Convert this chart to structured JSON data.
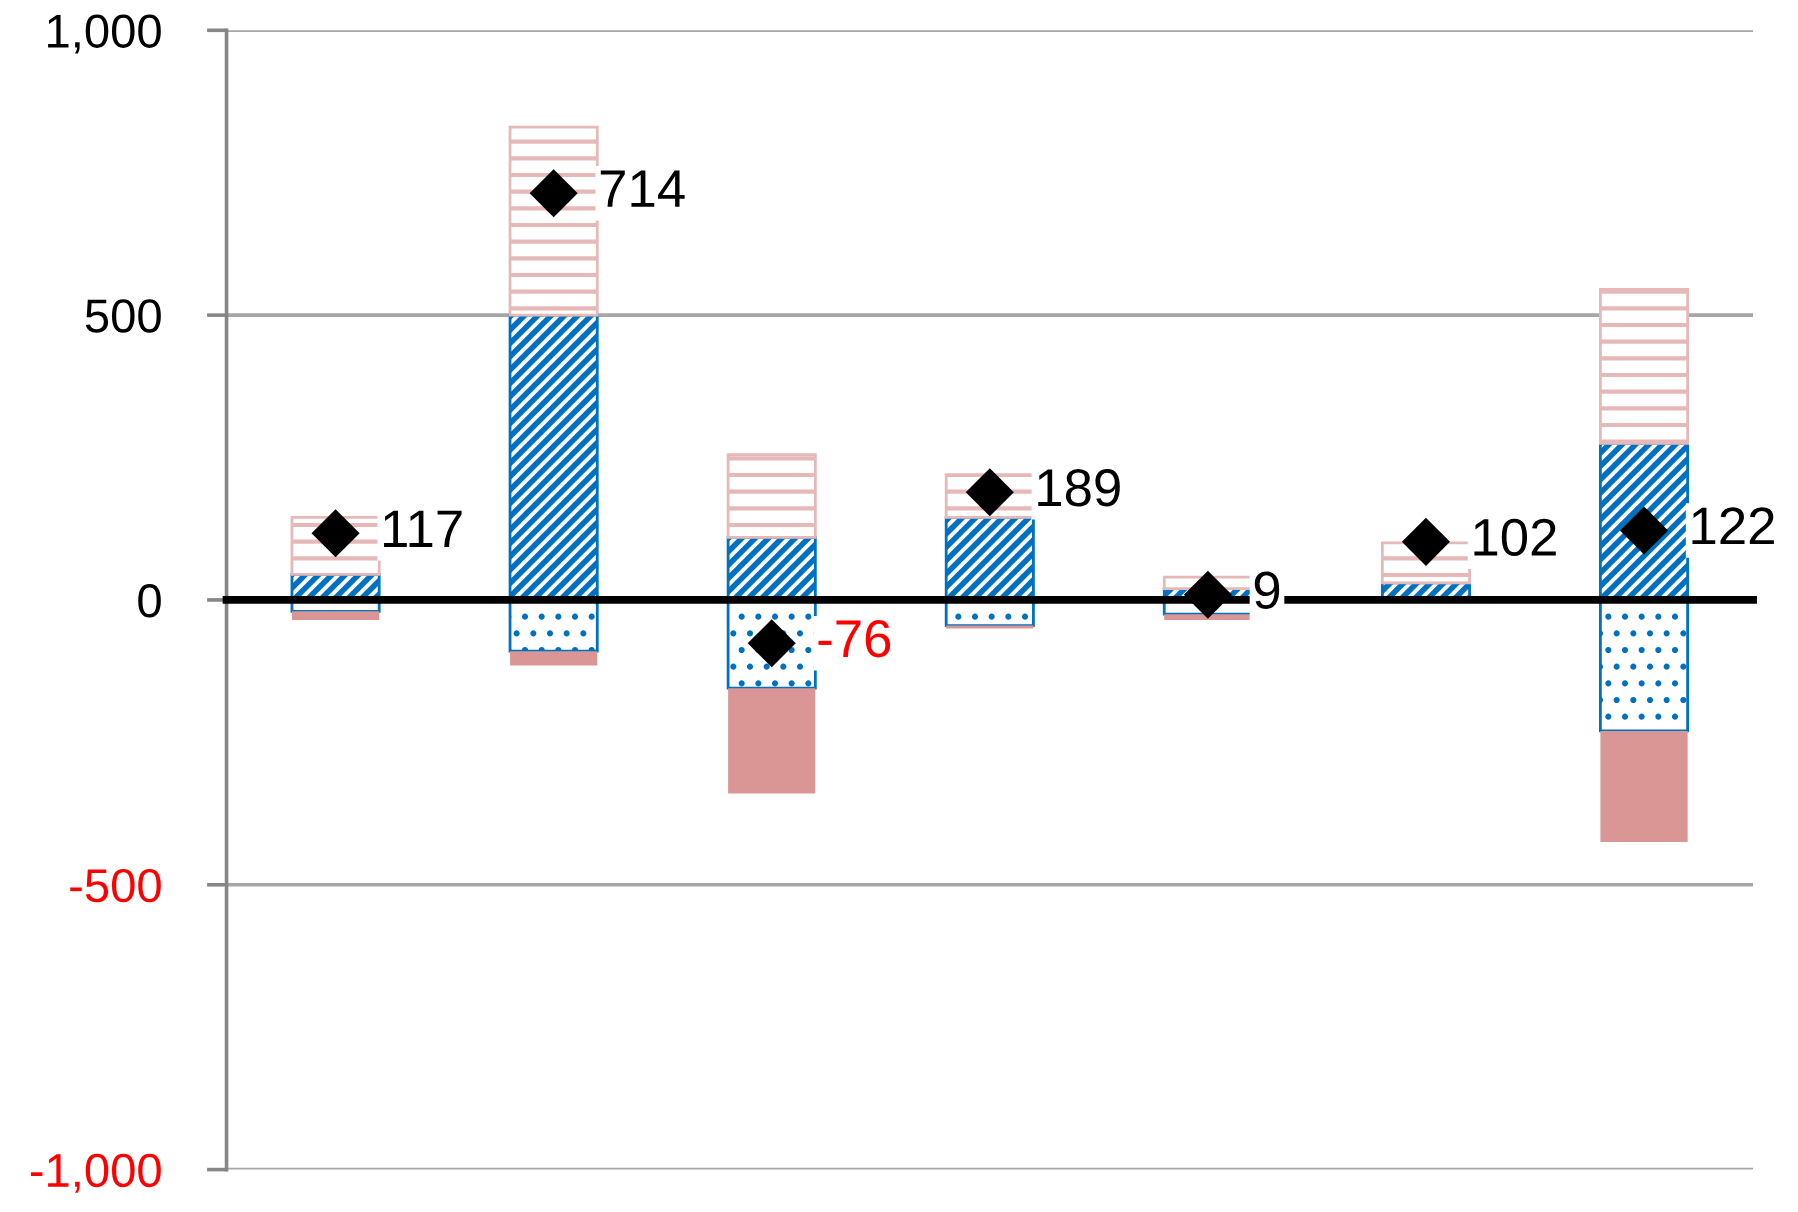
{
  "chart_data": {
    "type": "bar",
    "stacked": true,
    "categories": [
      null,
      null,
      null,
      null,
      null,
      null,
      null
    ],
    "series": [
      {
        "color": "#0070c0",
        "values": [
          45,
          500,
          110,
          145,
          20,
          30,
          275
        ]
      },
      {
        "color": "#e6b9b8",
        "values": [
          100,
          330,
          145,
          75,
          20,
          70,
          270
        ]
      },
      {
        "color": "#0070c0",
        "values": [
          -20,
          -90,
          -155,
          -45,
          -25,
          null,
          -230
        ]
      },
      {
        "color": "#d99694",
        "values": [
          -15,
          -25,
          -185,
          -5,
          -10,
          null,
          -195
        ]
      },
      {
        "type": "scatter",
        "color": "#000000",
        "values": [
          117,
          714,
          -76,
          189,
          9,
          102,
          122
        ],
        "value_labels": [
          "117",
          "714",
          "-76",
          "189",
          "9",
          "102",
          "122"
        ]
      }
    ],
    "ylim": [
      -1000,
      1000
    ],
    "yticks": [
      {
        "value": -1000,
        "label": "-1,000"
      },
      -500,
      0,
      500,
      {
        "value": 1000,
        "label": "1,000"
      }
    ],
    "grid": "y",
    "marker": "diamond",
    "tick_labels": "y"
  }
}
